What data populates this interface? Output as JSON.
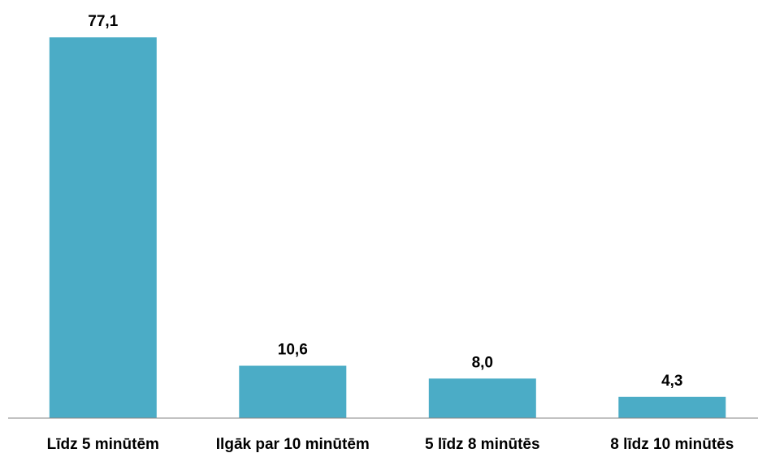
{
  "chart_data": {
    "type": "bar",
    "categories": [
      "Līdz 5 minūtēm",
      "Ilgāk par 10 minūtēm",
      "5 līdz 8 minūtēs",
      "8 līdz 10 minūtēs"
    ],
    "values": [
      77.1,
      10.6,
      8.0,
      4.3
    ],
    "data_labels": [
      "77,1",
      "10,6",
      "8,0",
      "4,3"
    ],
    "title": "",
    "xlabel": "",
    "ylabel": "",
    "ylim": [
      0,
      77.1
    ],
    "grid": false,
    "legend": "none",
    "bar_color": "#4bacc6"
  }
}
